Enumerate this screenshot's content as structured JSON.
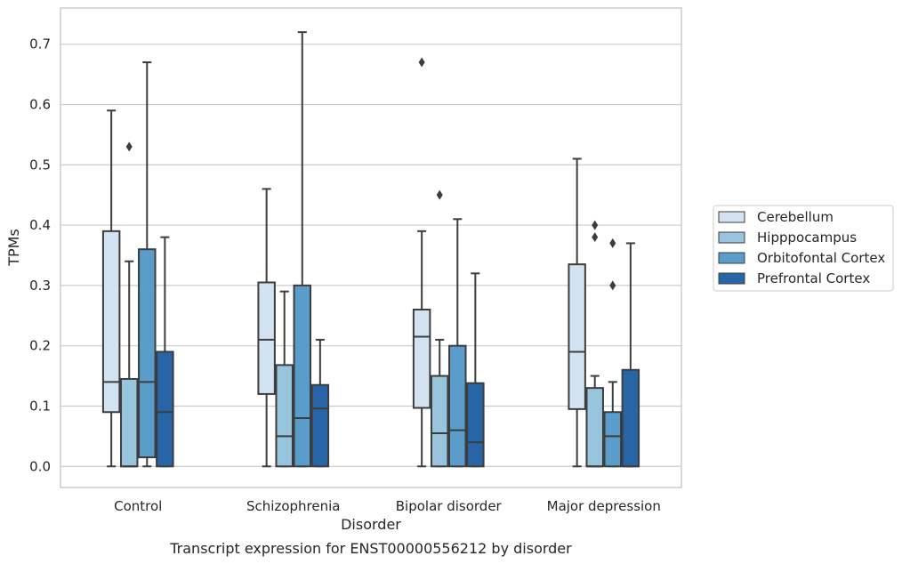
{
  "chart_data": {
    "type": "box",
    "caption": "Transcript expression for ENST00000556212 by disorder",
    "xlabel": "Disorder",
    "ylabel": "TPMs",
    "ylim": [
      -0.035,
      0.76
    ],
    "yticks": [
      0.0,
      0.1,
      0.2,
      0.3,
      0.4,
      0.5,
      0.6,
      0.7
    ],
    "ytick_labels": [
      "0.0",
      "0.1",
      "0.2",
      "0.3",
      "0.4",
      "0.5",
      "0.6",
      "0.7"
    ],
    "grid": "horizontal",
    "legend_position": "right",
    "categories": [
      "Control",
      "Schizophrenia",
      "Bipolar disorder",
      "Major depression"
    ],
    "series": [
      {
        "name": "Cerebellum",
        "color": "#d3e3f2",
        "boxes": [
          {
            "whisker_low": 0.0,
            "q1": 0.09,
            "median": 0.14,
            "q3": 0.39,
            "whisker_high": 0.59,
            "outliers": []
          },
          {
            "whisker_low": 0.0,
            "q1": 0.12,
            "median": 0.21,
            "q3": 0.305,
            "whisker_high": 0.46,
            "outliers": []
          },
          {
            "whisker_low": 0.0,
            "q1": 0.097,
            "median": 0.215,
            "q3": 0.26,
            "whisker_high": 0.39,
            "outliers": [
              0.67
            ]
          },
          {
            "whisker_low": 0.0,
            "q1": 0.095,
            "median": 0.19,
            "q3": 0.335,
            "whisker_high": 0.51,
            "outliers": []
          }
        ]
      },
      {
        "name": "Hipppocampus",
        "color": "#98c4de",
        "boxes": [
          {
            "whisker_low": 0.0,
            "q1": 0.0,
            "median": 0.0,
            "q3": 0.145,
            "whisker_high": 0.34,
            "outliers": [
              0.53
            ]
          },
          {
            "whisker_low": 0.0,
            "q1": 0.0,
            "median": 0.05,
            "q3": 0.168,
            "whisker_high": 0.29,
            "outliers": []
          },
          {
            "whisker_low": 0.0,
            "q1": 0.0,
            "median": 0.055,
            "q3": 0.15,
            "whisker_high": 0.21,
            "outliers": [
              0.45
            ]
          },
          {
            "whisker_low": 0.0,
            "q1": 0.0,
            "median": 0.0,
            "q3": 0.13,
            "whisker_high": 0.15,
            "outliers": [
              0.38,
              0.4
            ]
          }
        ]
      },
      {
        "name": "Orbitofontal Cortex",
        "color": "#5a9dcb",
        "boxes": [
          {
            "whisker_low": 0.0,
            "q1": 0.015,
            "median": 0.14,
            "q3": 0.36,
            "whisker_high": 0.67,
            "outliers": []
          },
          {
            "whisker_low": 0.0,
            "q1": 0.0,
            "median": 0.08,
            "q3": 0.3,
            "whisker_high": 0.72,
            "outliers": []
          },
          {
            "whisker_low": 0.0,
            "q1": 0.0,
            "median": 0.06,
            "q3": 0.2,
            "whisker_high": 0.41,
            "outliers": []
          },
          {
            "whisker_low": 0.0,
            "q1": 0.0,
            "median": 0.05,
            "q3": 0.09,
            "whisker_high": 0.14,
            "outliers": [
              0.3,
              0.37
            ]
          }
        ]
      },
      {
        "name": "Prefrontal Cortex",
        "color": "#2765a7",
        "boxes": [
          {
            "whisker_low": 0.0,
            "q1": 0.0,
            "median": 0.09,
            "q3": 0.19,
            "whisker_high": 0.38,
            "outliers": []
          },
          {
            "whisker_low": 0.0,
            "q1": 0.0,
            "median": 0.096,
            "q3": 0.135,
            "whisker_high": 0.21,
            "outliers": []
          },
          {
            "whisker_low": 0.0,
            "q1": 0.0,
            "median": 0.04,
            "q3": 0.138,
            "whisker_high": 0.32,
            "outliers": []
          },
          {
            "whisker_low": 0.0,
            "q1": 0.0,
            "median": 0.0,
            "q3": 0.16,
            "whisker_high": 0.37,
            "outliers": []
          }
        ]
      }
    ]
  }
}
